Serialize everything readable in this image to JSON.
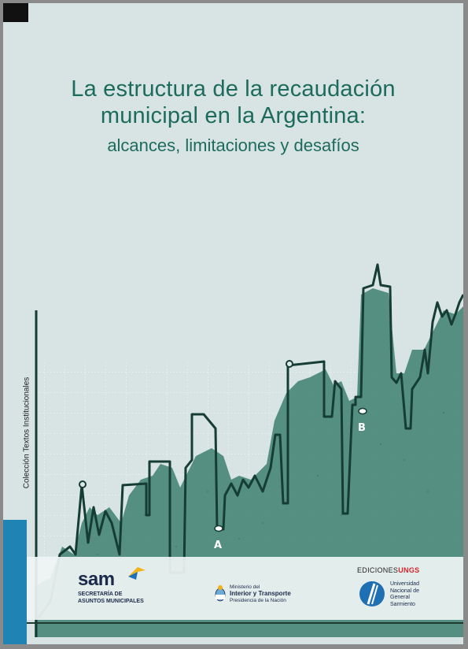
{
  "title": {
    "line1": "La estructura de la recaudación",
    "line2": "municipal en la Argentina:",
    "subtitle": "alcances, limitaciones y desafíos"
  },
  "spine": "Colección Textos Institucionales",
  "chart_labels": {
    "a": "A",
    "b": "B"
  },
  "logos": {
    "sam_word": "sam",
    "sam_sub1": "SECRETARÍA DE",
    "sam_sub2": "ASUNTOS MUNICIPALES",
    "ministry1": "Ministerio del",
    "ministry2": "Interior y Transporte",
    "ministry3": "Presidencia de la Nación",
    "ungs_ediciones": "EDICIONES",
    "ungs_brand": "UNGS",
    "ungs_l1": "Universidad",
    "ungs_l2": "Nacional de",
    "ungs_l3": "General",
    "ungs_l4": "Sarmiento"
  },
  "colors": {
    "title": "#1d6b5c",
    "area": "#4e8a7c",
    "line": "#163d33",
    "accent_bar": "#1f83b4"
  }
}
